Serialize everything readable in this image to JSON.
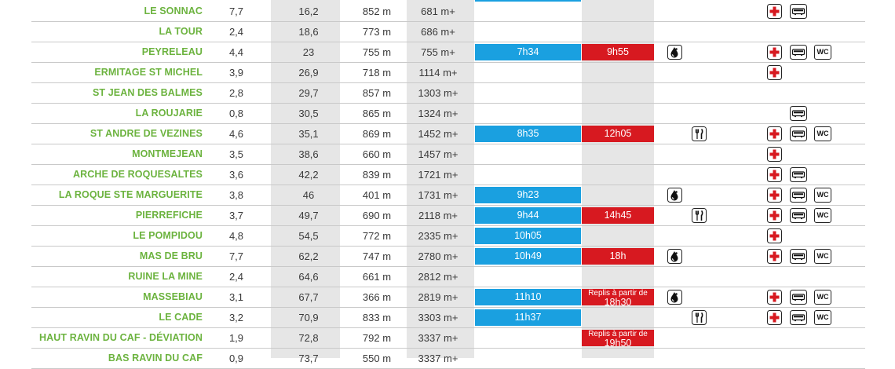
{
  "colors": {
    "name_green": "#6cb33f",
    "blue": "#1aa0e0",
    "red": "#d71920",
    "grey": "#e6e6e6"
  },
  "rows": [
    {
      "name": "LE SONNAC",
      "dist": "7,7",
      "cum": "16,2",
      "alt": "852 m",
      "dplus": "681 m+",
      "blue": "",
      "red": "",
      "red_sub": "",
      "water": false,
      "food": false,
      "aid": true,
      "bus": true,
      "wc": false
    },
    {
      "name": "LA TOUR",
      "dist": "2,4",
      "cum": "18,6",
      "alt": "773 m",
      "dplus": "686 m+",
      "blue": "",
      "red": "",
      "red_sub": "",
      "water": false,
      "food": false,
      "aid": false,
      "bus": false,
      "wc": false
    },
    {
      "name": "PEYRELEAU",
      "dist": "4,4",
      "cum": "23",
      "alt": "755 m",
      "dplus": "755 m+",
      "blue": "7h34",
      "red": "9h55",
      "red_sub": "",
      "water": true,
      "food": false,
      "aid": true,
      "bus": true,
      "wc": true
    },
    {
      "name": "ERMITAGE ST MICHEL",
      "dist": "3,9",
      "cum": "26,9",
      "alt": "718 m",
      "dplus": "1114 m+",
      "blue": "",
      "red": "",
      "red_sub": "",
      "water": false,
      "food": false,
      "aid": true,
      "bus": false,
      "wc": false
    },
    {
      "name": "ST JEAN DES BALMES",
      "dist": "2,8",
      "cum": "29,7",
      "alt": "857 m",
      "dplus": "1303 m+",
      "blue": "",
      "red": "",
      "red_sub": "",
      "water": false,
      "food": false,
      "aid": false,
      "bus": false,
      "wc": false
    },
    {
      "name": "LA ROUJARIE",
      "dist": "0,8",
      "cum": "30,5",
      "alt": "865 m",
      "dplus": "1324 m+",
      "blue": "",
      "red": "",
      "red_sub": "",
      "water": false,
      "food": false,
      "aid": false,
      "bus": true,
      "wc": false
    },
    {
      "name": "ST ANDRE DE VEZINES",
      "dist": "4,6",
      "cum": "35,1",
      "alt": "869 m",
      "dplus": "1452 m+",
      "blue": "8h35",
      "red": "12h05",
      "red_sub": "",
      "water": false,
      "food": true,
      "aid": true,
      "bus": true,
      "wc": true
    },
    {
      "name": "MONTMEJEAN",
      "dist": "3,5",
      "cum": "38,6",
      "alt": "660 m",
      "dplus": "1457 m+",
      "blue": "",
      "red": "",
      "red_sub": "",
      "water": false,
      "food": false,
      "aid": true,
      "bus": false,
      "wc": false
    },
    {
      "name": "ARCHE DE ROQUESALTES",
      "dist": "3,6",
      "cum": "42,2",
      "alt": "839 m",
      "dplus": "1721 m+",
      "blue": "",
      "red": "",
      "red_sub": "",
      "water": false,
      "food": false,
      "aid": true,
      "bus": true,
      "wc": false
    },
    {
      "name": "LA ROQUE STE MARGUERITE",
      "dist": "3,8",
      "cum": "46",
      "alt": "401 m",
      "dplus": "1731 m+",
      "blue": "9h23",
      "red": "",
      "red_sub": "",
      "water": true,
      "food": false,
      "aid": true,
      "bus": true,
      "wc": true
    },
    {
      "name": "PIERREFICHE",
      "dist": "3,7",
      "cum": "49,7",
      "alt": "690 m",
      "dplus": "2118 m+",
      "blue": "9h44",
      "red": "14h45",
      "red_sub": "",
      "water": false,
      "food": true,
      "aid": true,
      "bus": true,
      "wc": true
    },
    {
      "name": "LE POMPIDOU",
      "dist": "4,8",
      "cum": "54,5",
      "alt": "772 m",
      "dplus": "2335 m+",
      "blue": "10h05",
      "red": "",
      "red_sub": "",
      "water": false,
      "food": false,
      "aid": true,
      "bus": false,
      "wc": false
    },
    {
      "name": "MAS DE BRU",
      "dist": "7,7",
      "cum": "62,2",
      "alt": "747 m",
      "dplus": "2780 m+",
      "blue": "10h49",
      "red": "18h",
      "red_sub": "",
      "water": true,
      "food": false,
      "aid": true,
      "bus": true,
      "wc": true
    },
    {
      "name": "RUINE LA MINE",
      "dist": "2,4",
      "cum": "64,6",
      "alt": "661 m",
      "dplus": "2812 m+",
      "blue": "",
      "red": "",
      "red_sub": "",
      "water": false,
      "food": false,
      "aid": false,
      "bus": false,
      "wc": false
    },
    {
      "name": "MASSEBIAU",
      "dist": "3,1",
      "cum": "67,7",
      "alt": "366 m",
      "dplus": "2819 m+",
      "blue": "11h10",
      "red": "18h30",
      "red_sub": "Replis à partir de",
      "water": true,
      "food": false,
      "aid": true,
      "bus": true,
      "wc": true
    },
    {
      "name": "LE CADE",
      "dist": "3,2",
      "cum": "70,9",
      "alt": "833 m",
      "dplus": "3303 m+",
      "blue": "11h37",
      "red": "",
      "red_sub": "",
      "water": false,
      "food": true,
      "aid": true,
      "bus": true,
      "wc": true
    },
    {
      "name": "HAUT RAVIN DU CAF - DÉVIATION",
      "dist": "1,9",
      "cum": "72,8",
      "alt": "792 m",
      "dplus": "3337 m+",
      "blue": "",
      "red": "19h50",
      "red_sub": "Replis à partir de",
      "water": false,
      "food": false,
      "aid": false,
      "bus": false,
      "wc": false
    },
    {
      "name": "BAS RAVIN DU CAF",
      "dist": "0,9",
      "cum": "73,7",
      "alt": "550 m",
      "dplus": "3337 m+",
      "blue": "",
      "red": "",
      "red_sub": "",
      "water": false,
      "food": false,
      "aid": false,
      "bus": false,
      "wc": false
    }
  ],
  "icons": {
    "water": "water-drop-icon",
    "food": "fork-knife-icon",
    "aid": "first-aid-cross-icon",
    "bus": "shuttle-bus-icon",
    "wc": "wc-icon"
  },
  "wc_label": "WC"
}
